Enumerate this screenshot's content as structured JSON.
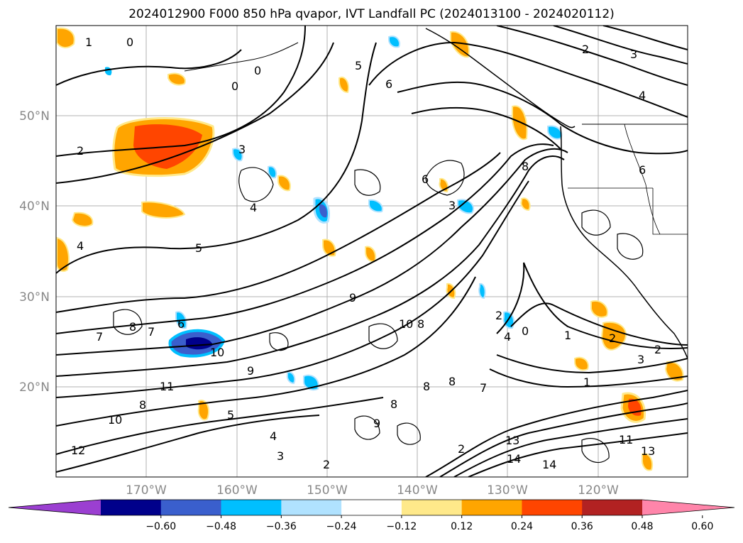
{
  "title": "2024012900 F000 850 hPa qvapor, IVT Landfall PC (2024013100 - 2024020112)",
  "lat_labels": [
    "50°N",
    "40°N",
    "30°N",
    "20°N"
  ],
  "lon_labels": [
    "170°W",
    "160°W",
    "150°W",
    "140°W",
    "130°W",
    "120°W"
  ],
  "colorbar": {
    "ticks": [
      "−0.60",
      "−0.48",
      "−0.36",
      "−0.24",
      "−0.12",
      "0.12",
      "0.24",
      "0.36",
      "0.48",
      "0.60"
    ],
    "colors": [
      "#9b3fd1",
      "#00008b",
      "#3a5fcd",
      "#00bfff",
      "#b0e2ff",
      "#ffffff",
      "#ffe98a",
      "#ffa500",
      "#ff4500",
      "#b22222",
      "#ff85aa"
    ]
  },
  "contour_labels": [
    "1",
    "0",
    "0",
    "0",
    "2",
    "3",
    "2",
    "4",
    "5",
    "4",
    "5",
    "6",
    "6",
    "3",
    "7",
    "8",
    "7",
    "6",
    "10",
    "9",
    "10",
    "8",
    "11",
    "9",
    "10",
    "8",
    "8",
    "9",
    "8",
    "8",
    "5",
    "4",
    "3",
    "2",
    "2",
    "6",
    "4",
    "3",
    "1",
    "0",
    "2",
    "4",
    "8",
    "2",
    "1",
    "3",
    "2",
    "13",
    "11",
    "14",
    "13",
    "14",
    "12",
    "7"
  ]
}
